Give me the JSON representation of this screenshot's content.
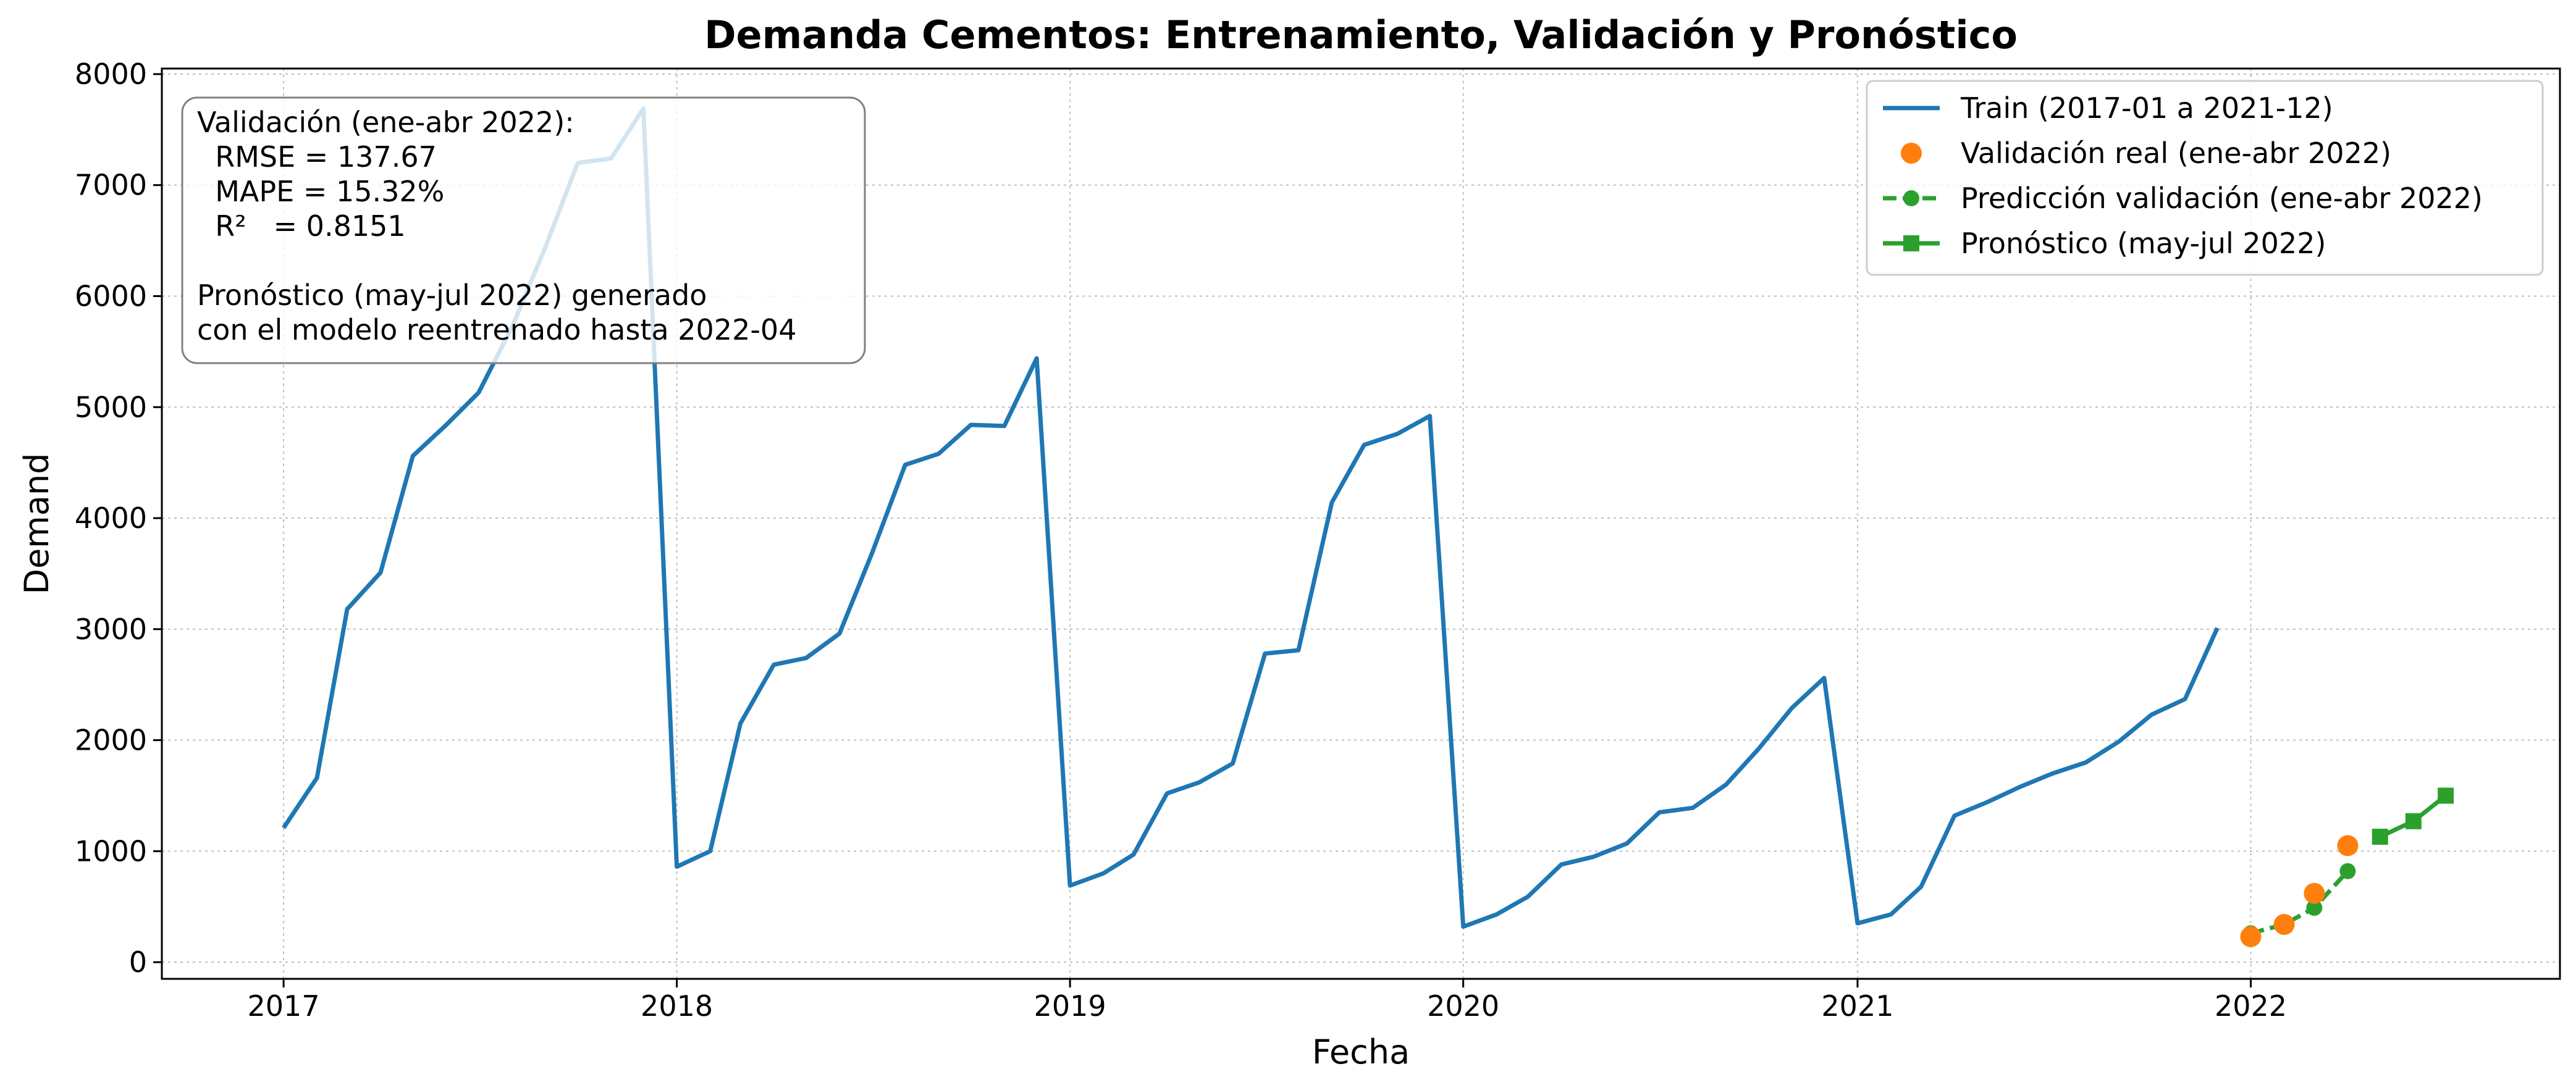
{
  "chart_data": {
    "type": "line",
    "title": "Demanda Cementos: Entrenamiento, Validación y Pronóstico",
    "xlabel": "Fecha",
    "ylabel": "Demand",
    "xlim": [
      "2016-09-10",
      "2022-10-15"
    ],
    "ylim": [
      -150,
      8050
    ],
    "xticks": [
      {
        "date": "2017-01-01",
        "label": "2017"
      },
      {
        "date": "2018-01-01",
        "label": "2018"
      },
      {
        "date": "2019-01-01",
        "label": "2019"
      },
      {
        "date": "2020-01-01",
        "label": "2020"
      },
      {
        "date": "2021-01-01",
        "label": "2021"
      },
      {
        "date": "2022-01-01",
        "label": "2022"
      }
    ],
    "yticks": [
      0,
      1000,
      2000,
      3000,
      4000,
      5000,
      6000,
      7000,
      8000
    ],
    "grid": true,
    "legend_position": "top-right",
    "series": [
      {
        "name": "Train (2017-01 a 2021-12)",
        "kind": "line",
        "color": "#1f77b4",
        "x": [
          "2017-01",
          "2017-02",
          "2017-03",
          "2017-04",
          "2017-05",
          "2017-06",
          "2017-07",
          "2017-08",
          "2017-09",
          "2017-10",
          "2017-11",
          "2017-12",
          "2018-01",
          "2018-02",
          "2018-03",
          "2018-04",
          "2018-05",
          "2018-06",
          "2018-07",
          "2018-08",
          "2018-09",
          "2018-10",
          "2018-11",
          "2018-12",
          "2019-01",
          "2019-02",
          "2019-03",
          "2019-04",
          "2019-05",
          "2019-06",
          "2019-07",
          "2019-08",
          "2019-09",
          "2019-10",
          "2019-11",
          "2019-12",
          "2020-01",
          "2020-02",
          "2020-03",
          "2020-04",
          "2020-05",
          "2020-06",
          "2020-07",
          "2020-08",
          "2020-09",
          "2020-10",
          "2020-11",
          "2020-12",
          "2021-01",
          "2021-02",
          "2021-03",
          "2021-04",
          "2021-05",
          "2021-06",
          "2021-07",
          "2021-08",
          "2021-09",
          "2021-10",
          "2021-11",
          "2021-12"
        ],
        "values": [
          1210,
          1660,
          3180,
          3510,
          4560,
          4840,
          5130,
          5720,
          6440,
          7200,
          7240,
          7690,
          860,
          1000,
          2150,
          2680,
          2740,
          2960,
          3680,
          4480,
          4580,
          4840,
          4830,
          5440,
          690,
          800,
          970,
          1520,
          1620,
          1790,
          2780,
          2810,
          4140,
          4660,
          4760,
          4920,
          320,
          430,
          590,
          880,
          950,
          1070,
          1350,
          1390,
          1600,
          1920,
          2290,
          2560,
          350,
          430,
          680,
          1320,
          1440,
          1580,
          1700,
          1800,
          1990,
          2230,
          2370,
          3010
        ]
      },
      {
        "name": "Validación real (ene-abr 2022)",
        "kind": "scatter",
        "color": "#ff7f0e",
        "x": [
          "2022-01",
          "2022-02",
          "2022-03",
          "2022-04"
        ],
        "values": [
          230,
          340,
          620,
          1050
        ]
      },
      {
        "name": "Predicción validación (ene-abr 2022)",
        "kind": "dashed-line-circle",
        "color": "#2ca02c",
        "x": [
          "2022-01",
          "2022-02",
          "2022-03",
          "2022-04"
        ],
        "values": [
          260,
          340,
          490,
          820
        ]
      },
      {
        "name": "Pronóstico (may-jul 2022)",
        "kind": "line-square",
        "color": "#2ca02c",
        "x": [
          "2022-05",
          "2022-06",
          "2022-07"
        ],
        "values": [
          1130,
          1270,
          1500
        ]
      }
    ],
    "annotation_lines": [
      "Validación (ene-abr 2022):",
      "  RMSE = 137.67",
      "  MAPE = 15.32%",
      "  R²   = 0.8151",
      "",
      "Pronóstico (may-jul 2022) generado",
      "con el modelo reentrenado hasta 2022-04"
    ]
  }
}
